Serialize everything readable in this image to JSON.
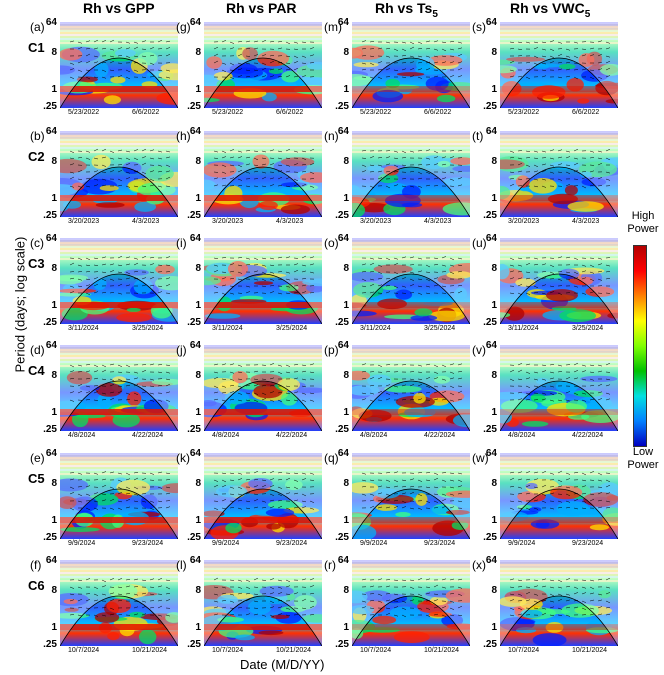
{
  "chart_data": {
    "type": "heatmap",
    "columns": [
      "Rh vs GPP",
      "Rh vs PAR",
      "Rh vs Ts5",
      "Rh vs VWC5"
    ],
    "rows": [
      {
        "case": "C1",
        "letters": [
          "(a)",
          "(g)",
          "(m)",
          "(s)"
        ],
        "dates": [
          "5/23/2022",
          "6/6/2022"
        ]
      },
      {
        "case": "C2",
        "letters": [
          "(b)",
          "(h)",
          "(n)",
          "(t)"
        ],
        "dates": [
          "3/20/2023",
          "4/3/2023"
        ]
      },
      {
        "case": "C3",
        "letters": [
          "(c)",
          "(i)",
          "(o)",
          "(u)"
        ],
        "dates": [
          "3/11/2024",
          "3/25/2024"
        ]
      },
      {
        "case": "C4",
        "letters": [
          "(d)",
          "(j)",
          "(p)",
          "(v)"
        ],
        "dates": [
          "4/8/2024",
          "4/22/2024"
        ]
      },
      {
        "case": "C5",
        "letters": [
          "(e)",
          "(k)",
          "(q)",
          "(w)"
        ],
        "dates": [
          "9/9/2024",
          "9/23/2024"
        ]
      },
      {
        "case": "C6",
        "letters": [
          "(f)",
          "(l)",
          "(r)",
          "(x)"
        ],
        "dates": [
          "10/7/2024",
          "10/21/2024"
        ]
      }
    ],
    "ytick_labels": [
      "64",
      "8",
      "1",
      ".25"
    ],
    "ylabel": "Period (days; log scale)",
    "xlabel": "Date (M/D/YY)",
    "yscale": "log",
    "colorbar": {
      "high_label": "High Power",
      "low_label": "Low Power",
      "colors": [
        "#b40000",
        "#ff0000",
        "#ff8000",
        "#ffff00",
        "#80ff00",
        "#00c000",
        "#00e0e0",
        "#0080ff",
        "#0000c0"
      ]
    }
  }
}
